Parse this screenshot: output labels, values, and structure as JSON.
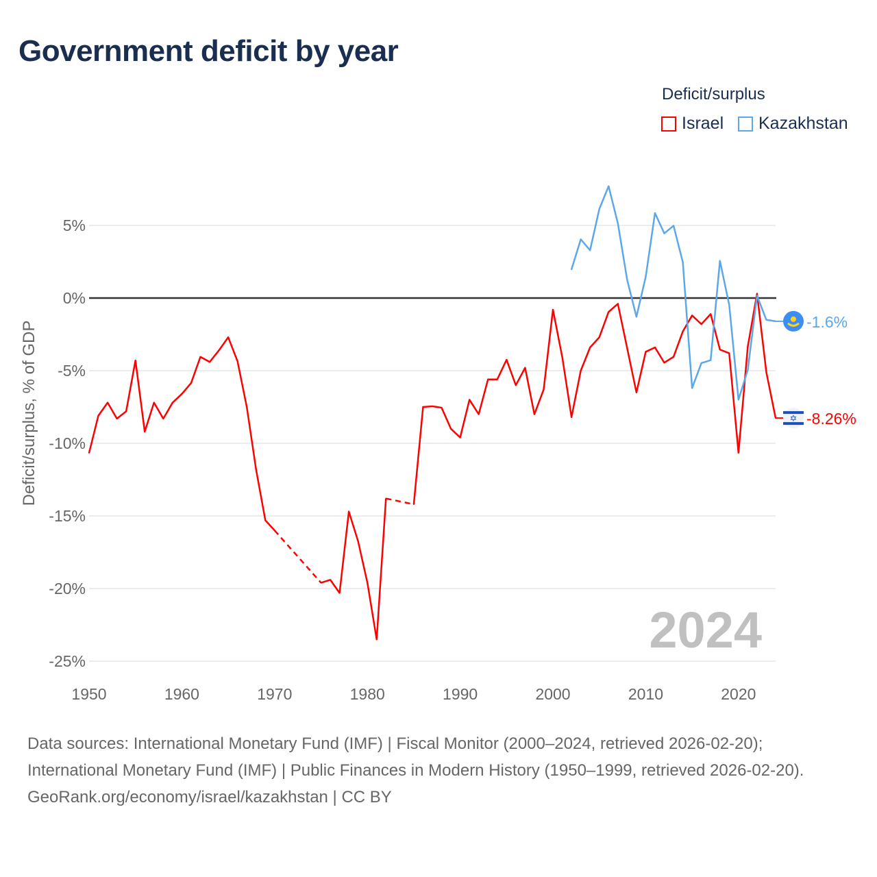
{
  "title": "Government deficit by year",
  "legend": {
    "title": "Deficit/surplus",
    "items": [
      {
        "name": "Israel",
        "color": "#ff0000"
      },
      {
        "name": "Kazakhstan",
        "color": "#5ba7ea"
      }
    ]
  },
  "watermark_year": "2024",
  "footer": {
    "sources": "Data sources: International Monetary Fund (IMF) | Fiscal Monitor (2000–2024, retrieved 2026-02-20); International Monetary Fund (IMF) | Public Finances in Modern History (1950–1999, retrieved 2026-02-20).",
    "credit": "GeoRank.org/economy/israel/kazakhstan | CC BY"
  },
  "chart_data": {
    "type": "line",
    "title": "Government deficit by year",
    "xlabel": "",
    "ylabel": "Deficit/surplus, % of GDP",
    "xlim": [
      1950,
      2024
    ],
    "ylim": [
      -25,
      8
    ],
    "x_ticks": [
      "1950",
      "1960",
      "1970",
      "1980",
      "1990",
      "2000",
      "2010",
      "2020"
    ],
    "y_ticks": [
      {
        "v": 5,
        "label": "5%"
      },
      {
        "v": 0,
        "label": "0%"
      },
      {
        "v": -5,
        "label": "-5%"
      },
      {
        "v": -10,
        "label": "-10%"
      },
      {
        "v": -15,
        "label": "-15%"
      },
      {
        "v": -20,
        "label": "-20%"
      },
      {
        "v": -25,
        "label": "-25%"
      }
    ],
    "grid": true,
    "legend_position": "top-right",
    "series": [
      {
        "name": "Israel",
        "color": "#ff0000",
        "end_label": "-8.26%",
        "flag": "israel",
        "x": [
          1950,
          1951,
          1952,
          1953,
          1954,
          1955,
          1956,
          1957,
          1958,
          1959,
          1960,
          1961,
          1962,
          1963,
          1964,
          1965,
          1966,
          1967,
          1968,
          1969,
          1970,
          1975,
          1976,
          1977,
          1978,
          1979,
          1980,
          1981,
          1982,
          1985,
          1986,
          1987,
          1988,
          1989,
          1990,
          1991,
          1992,
          1993,
          1994,
          1995,
          1996,
          1997,
          1998,
          1999,
          2000,
          2001,
          2002,
          2003,
          2004,
          2005,
          2006,
          2007,
          2008,
          2009,
          2010,
          2011,
          2012,
          2013,
          2014,
          2015,
          2016,
          2017,
          2018,
          2019,
          2020,
          2021,
          2022,
          2023,
          2024
        ],
        "values": [
          -10.66,
          -8.1,
          -7.2,
          -8.3,
          -7.8,
          -4.3,
          -9.2,
          -7.2,
          -8.3,
          -7.2,
          -6.6,
          -5.85,
          -4.05,
          -4.4,
          -3.6,
          -2.7,
          -4.35,
          -7.5,
          -11.8,
          -15.3,
          -16.0,
          -19.6,
          -19.4,
          -20.3,
          -14.7,
          -16.75,
          -19.6,
          -23.5,
          -13.8,
          -14.2,
          -7.5,
          -7.45,
          -7.55,
          -9.0,
          -9.6,
          -7.0,
          -8.0,
          -5.6,
          -5.6,
          -4.25,
          -6.0,
          -4.8,
          -8.0,
          -6.3,
          -0.8,
          -4.05,
          -8.2,
          -5.0,
          -3.4,
          -2.7,
          -0.95,
          -0.4,
          -3.45,
          -6.5,
          -3.7,
          -3.4,
          -4.45,
          -4.05,
          -2.3,
          -1.2,
          -1.8,
          -1.1,
          -3.55,
          -3.8,
          -10.65,
          -3.35,
          0.3,
          -5.1,
          -8.26
        ]
      },
      {
        "name": "Kazakhstan",
        "color": "#5ba7ea",
        "end_label": "-1.6%",
        "flag": "kazakhstan",
        "x": [
          2002,
          2003,
          2004,
          2005,
          2006,
          2007,
          2008,
          2009,
          2010,
          2011,
          2012,
          2013,
          2014,
          2015,
          2016,
          2017,
          2018,
          2019,
          2020,
          2021,
          2022,
          2023,
          2024
        ],
        "values": [
          1.97,
          4.04,
          3.29,
          6.13,
          7.7,
          5.14,
          1.26,
          -1.29,
          1.46,
          5.85,
          4.45,
          4.98,
          2.47,
          -6.2,
          -4.48,
          -4.28,
          2.56,
          -0.47,
          -7.0,
          -4.95,
          0.16,
          -1.5,
          -1.6
        ]
      }
    ]
  }
}
